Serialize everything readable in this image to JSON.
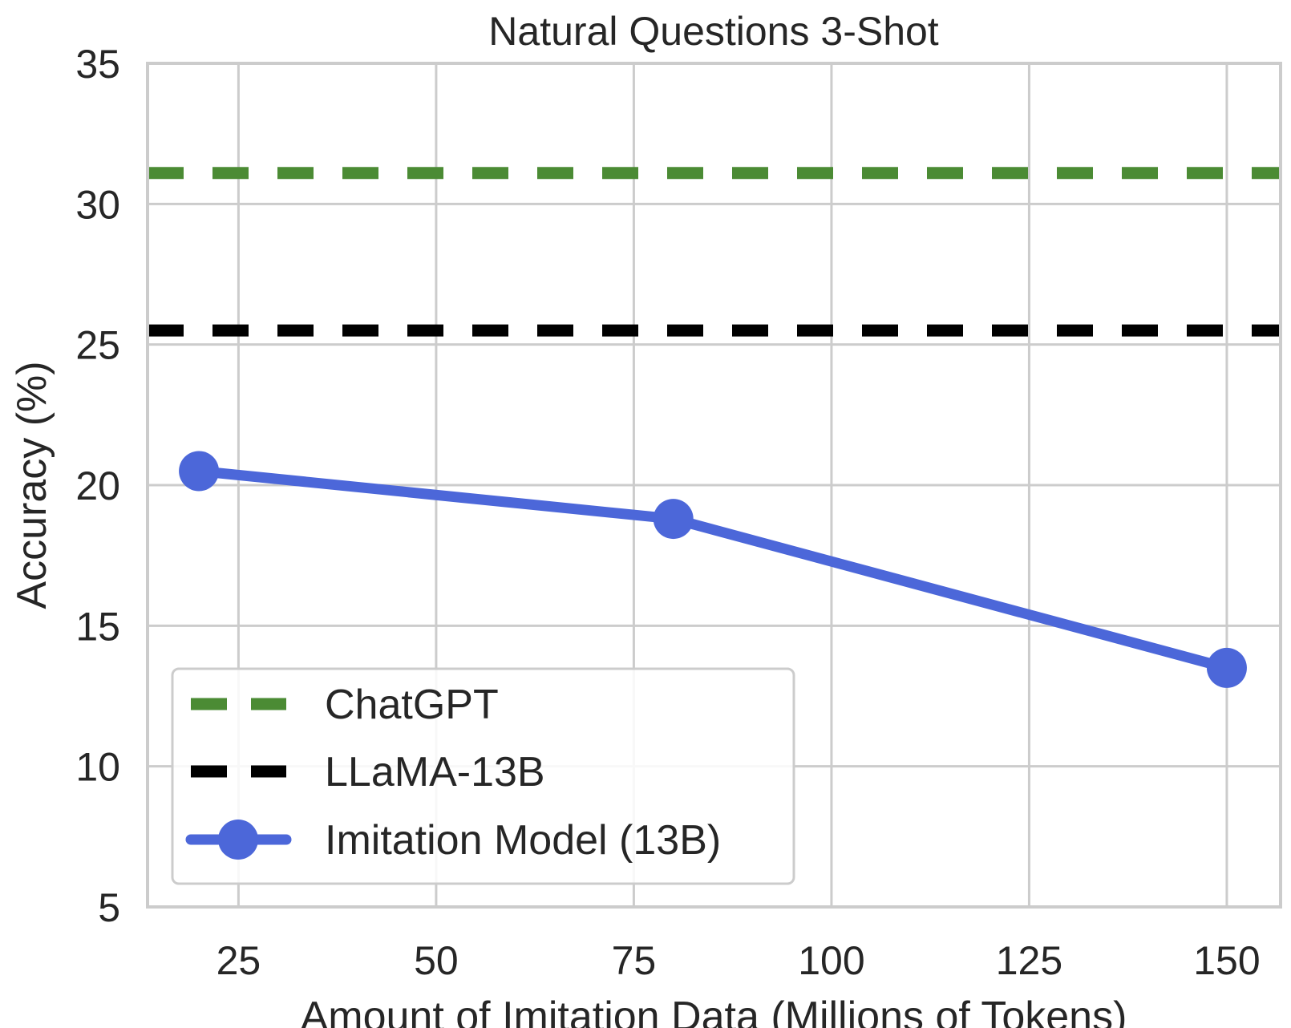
{
  "chart_data": {
    "type": "line",
    "title": "Natural Questions 3-Shot",
    "xlabel": "Amount of Imitation Data (Millions of Tokens)",
    "ylabel": "Accuracy (%)",
    "xlim": [
      13.5,
      156.8
    ],
    "ylim": [
      5,
      35
    ],
    "x_ticks": [
      25,
      50,
      75,
      100,
      125,
      150
    ],
    "y_ticks": [
      5,
      10,
      15,
      20,
      25,
      30,
      35
    ],
    "x_tick_labels": [
      "25",
      "50",
      "75",
      "100",
      "125",
      "150"
    ],
    "y_tick_labels": [
      "5",
      "10",
      "15",
      "20",
      "25",
      "30",
      "35"
    ],
    "grid": true,
    "legend_position": "lower-left",
    "series": [
      {
        "name": "ChatGPT",
        "kind": "hline",
        "style": "dashed",
        "color": "#4b8b34",
        "y": 31.1
      },
      {
        "name": "LLaMA-13B",
        "kind": "hline",
        "style": "dashed",
        "color": "#000000",
        "y": 25.5
      },
      {
        "name": "Imitation Model (13B)",
        "kind": "line",
        "style": "solid",
        "marker": "circle",
        "color": "#4c67d9",
        "x": [
          20,
          80,
          150
        ],
        "y": [
          20.5,
          18.8,
          13.5
        ]
      }
    ]
  }
}
